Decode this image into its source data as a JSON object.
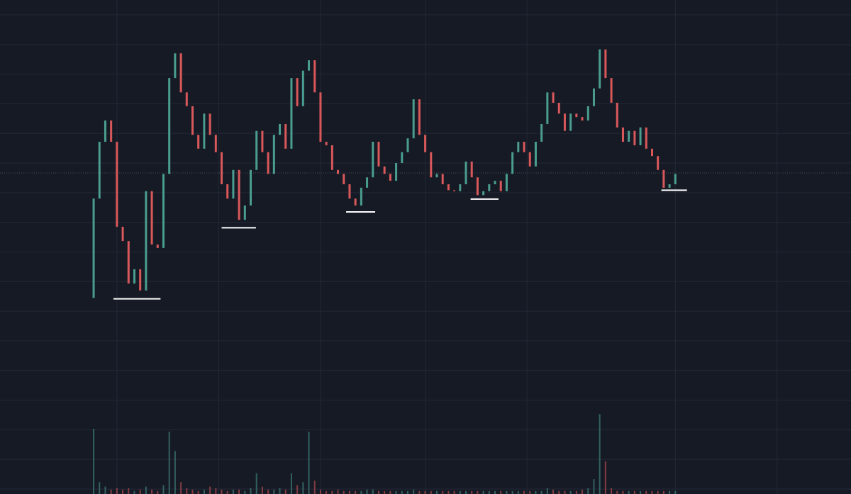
{
  "chart_data": {
    "type": "candlestick",
    "background": "#161a25",
    "grid": true,
    "grid_color": "#242836",
    "up_color": "#4a9d8f",
    "down_color": "#d9585a",
    "xlim": [
      -16.1,
      130.2
    ],
    "xticks": [
      4,
      21.5,
      39,
      57,
      74.5,
      100,
      117.5
    ],
    "ylim": [
      0,
      100
    ],
    "yticks": [
      97,
      91,
      85,
      79,
      73,
      67,
      61,
      55,
      49,
      43,
      37,
      31,
      25,
      19,
      13,
      7,
      1
    ],
    "volume_lim": [
      0,
      100
    ],
    "open": [
      39.7,
      59.8,
      71.3,
      75.6,
      71.3,
      54.1,
      51.2,
      42.6,
      45.5,
      41.2,
      61.3,
      50.5,
      49.8,
      64.8,
      84.2,
      89.2,
      81.3,
      78.5,
      72.7,
      69.9,
      77,
      72.7,
      69.2,
      62.7,
      59.8,
      65.6,
      55.5,
      58.4,
      65.6,
      73.5,
      69.2,
      64.8,
      72.7,
      74.9,
      69.9,
      84.2,
      78.5,
      85.7,
      87.8,
      81.3,
      71.3,
      70.6,
      65.6,
      64.8,
      62.7,
      59.8,
      58.4,
      62,
      64.1,
      71.3,
      66.3,
      64.8,
      63.4,
      67,
      69.2,
      72,
      79.9,
      72.7,
      69.2,
      64.1,
      64.8,
      62.7,
      61.5,
      61.3,
      62.7,
      67.3,
      64.1,
      60.5,
      61.3,
      62.7,
      63.4,
      61.3,
      64.8,
      69.2,
      71.3,
      69.2,
      66.3,
      71.3,
      74.9,
      81.3,
      79.2,
      77,
      73.5,
      77,
      76.3,
      75.6,
      78.5,
      82.1,
      90,
      84.2,
      79.2,
      74.2,
      71.3,
      73.5,
      70.6,
      74.2,
      69.9,
      68.4,
      65.6,
      62,
      62.7
    ],
    "close": [
      59.8,
      71.3,
      75.6,
      71.3,
      54.1,
      51.2,
      42.6,
      45.5,
      41.2,
      61.3,
      50.5,
      49.8,
      64.8,
      84.2,
      89.2,
      81.3,
      78.5,
      72.7,
      69.9,
      77,
      72.7,
      69.2,
      62.7,
      59.8,
      65.6,
      55.5,
      58.4,
      65.6,
      73.5,
      69.2,
      64.8,
      72.7,
      74.9,
      69.9,
      84.2,
      78.5,
      85.7,
      87.8,
      81.3,
      71.3,
      70.6,
      65.6,
      64.8,
      62.7,
      59.8,
      58.4,
      62,
      64.1,
      71.3,
      66.3,
      64.8,
      63.4,
      67,
      69.2,
      72,
      79.9,
      72.7,
      69.2,
      64.1,
      64.8,
      62.7,
      61.5,
      61.3,
      62.7,
      67.3,
      64.1,
      60.5,
      61.3,
      62.7,
      63.4,
      61.3,
      64.8,
      69.2,
      71.3,
      69.2,
      66.3,
      71.3,
      74.9,
      81.3,
      79.2,
      77,
      73.5,
      77,
      76.3,
      75.6,
      78.5,
      82.1,
      90,
      84.2,
      79.2,
      74.2,
      71.3,
      73.5,
      70.6,
      74.2,
      69.9,
      68.4,
      65.6,
      62,
      62.7,
      64.8
    ],
    "volume": [
      44,
      8,
      5,
      3,
      4,
      3,
      4,
      2,
      3,
      5,
      3,
      2,
      6,
      42,
      29,
      8,
      4,
      3,
      2,
      3,
      5,
      4,
      3,
      2,
      3,
      3,
      2,
      4,
      14,
      5,
      3,
      3,
      4,
      3,
      14,
      6,
      8,
      42,
      9,
      3,
      2,
      2,
      3,
      2,
      2,
      2,
      2,
      3,
      3,
      2,
      2,
      2,
      2,
      2,
      2,
      3,
      2,
      2,
      2,
      2,
      2,
      2,
      2,
      2,
      2,
      2,
      2,
      2,
      2,
      2,
      2,
      2,
      2,
      2,
      2,
      2,
      2,
      2,
      4,
      3,
      2,
      2,
      2,
      2,
      3,
      4,
      10,
      54,
      22,
      4,
      2,
      2,
      2,
      2,
      2,
      2,
      2,
      2,
      2,
      2,
      2
    ],
    "current_price": 65,
    "current_price_color": "#4a4f5e",
    "support_color": "#ffffff",
    "support_levels": [
      {
        "value": 39.5,
        "from": 3.4,
        "to": 11.5
      },
      {
        "value": 53.9,
        "from": 22,
        "to": 27.9
      },
      {
        "value": 57.1,
        "from": 43.4,
        "to": 48.4
      },
      {
        "value": 59.7,
        "from": 64.8,
        "to": 69.6
      },
      {
        "value": 61.5,
        "from": 97.6,
        "to": 102
      }
    ]
  }
}
